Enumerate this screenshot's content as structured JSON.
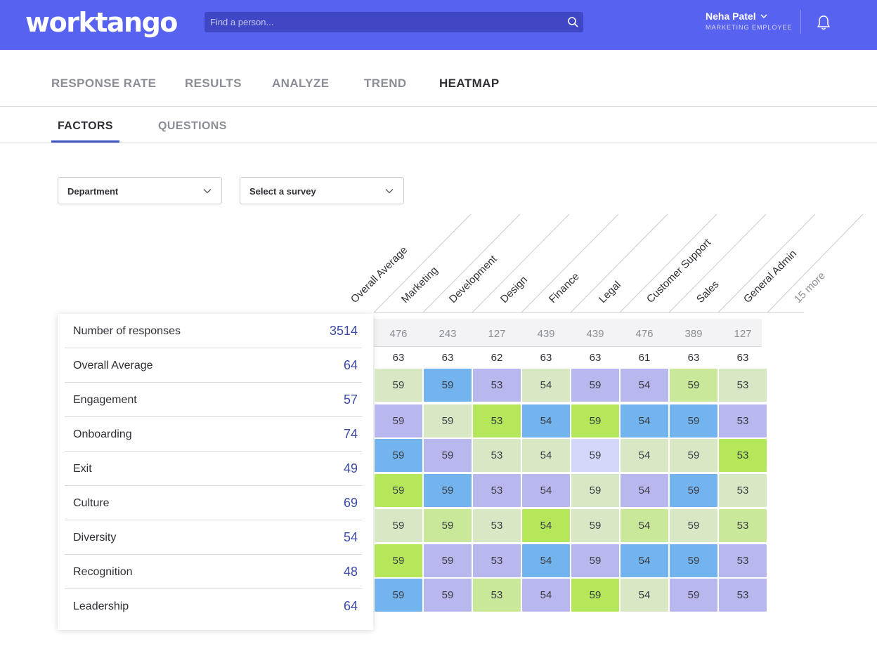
{
  "header": {
    "logo": "worktango",
    "search_placeholder": "Find a person...",
    "user_name": "Neha Patel",
    "user_role": "MARKETING EMPLOYEE",
    "brand_color": "#5862f0"
  },
  "main_tabs": [
    {
      "label": "RESPONSE RATE",
      "active": false
    },
    {
      "label": "RESULTS",
      "active": false
    },
    {
      "label": "ANALYZE",
      "active": false
    },
    {
      "label": "TREND",
      "active": false
    },
    {
      "label": "HEATMAP",
      "active": true
    }
  ],
  "sub_tabs": [
    {
      "label": "FACTORS",
      "active": true
    },
    {
      "label": "QUESTIONS",
      "active": false
    }
  ],
  "filters": {
    "department": "Department",
    "survey": "Select a survey"
  },
  "columns": [
    "Overall Average",
    "Marketing",
    "Development",
    "Design",
    "Finance",
    "Legal",
    "Customer Support",
    "Sales",
    "General Admin",
    "15 more"
  ],
  "rows": [
    {
      "label": "Number of responses",
      "value": "3514"
    },
    {
      "label": "Overall Average",
      "value": "64"
    },
    {
      "label": "Engagement",
      "value": "57"
    },
    {
      "label": "Onboarding",
      "value": "74"
    },
    {
      "label": "Exit",
      "value": "49"
    },
    {
      "label": "Culture",
      "value": "69"
    },
    {
      "label": "Diversity",
      "value": "54"
    },
    {
      "label": "Recognition",
      "value": "48"
    },
    {
      "label": "Leadership",
      "value": "64"
    }
  ],
  "responses_row": [
    "476",
    "243",
    "127",
    "439",
    "439",
    "476",
    "389",
    "127"
  ],
  "average_row": [
    "63",
    "63",
    "62",
    "63",
    "63",
    "61",
    "63",
    "63"
  ],
  "heatmap": {
    "values": [
      [
        "59",
        "59",
        "53",
        "54",
        "59",
        "54",
        "59",
        "53"
      ],
      [
        "59",
        "59",
        "53",
        "54",
        "59",
        "54",
        "59",
        "53"
      ],
      [
        "59",
        "59",
        "53",
        "54",
        "59",
        "54",
        "59",
        "53"
      ],
      [
        "59",
        "59",
        "53",
        "54",
        "59",
        "54",
        "59",
        "53"
      ],
      [
        "59",
        "59",
        "53",
        "54",
        "59",
        "54",
        "59",
        "53"
      ],
      [
        "59",
        "59",
        "53",
        "54",
        "59",
        "54",
        "59",
        "53"
      ],
      [
        "59",
        "59",
        "53",
        "54",
        "59",
        "54",
        "59",
        "53"
      ]
    ],
    "color_keys": [
      [
        "lg",
        "b",
        "p",
        "lg",
        "p",
        "p",
        "g",
        "lg"
      ],
      [
        "p",
        "lg",
        "y",
        "b",
        "y",
        "b",
        "b",
        "p"
      ],
      [
        "b",
        "p",
        "lg",
        "lg",
        "lp",
        "lg",
        "lg",
        "y"
      ],
      [
        "y",
        "b",
        "p",
        "p",
        "lg",
        "p",
        "b",
        "lg"
      ],
      [
        "lg",
        "g",
        "lg",
        "y",
        "lg",
        "g",
        "lg",
        "g"
      ],
      [
        "y",
        "p",
        "p",
        "b",
        "p",
        "b",
        "b",
        "p"
      ],
      [
        "b",
        "p",
        "g",
        "p",
        "y",
        "lg",
        "p",
        "p"
      ]
    ],
    "palette": {
      "b": "#74b4ee",
      "p": "#b9b8ee",
      "lp": "#d3d8fa",
      "lg": "#d8e8c4",
      "g": "#c9e89a",
      "y": "#b4e85a"
    }
  }
}
